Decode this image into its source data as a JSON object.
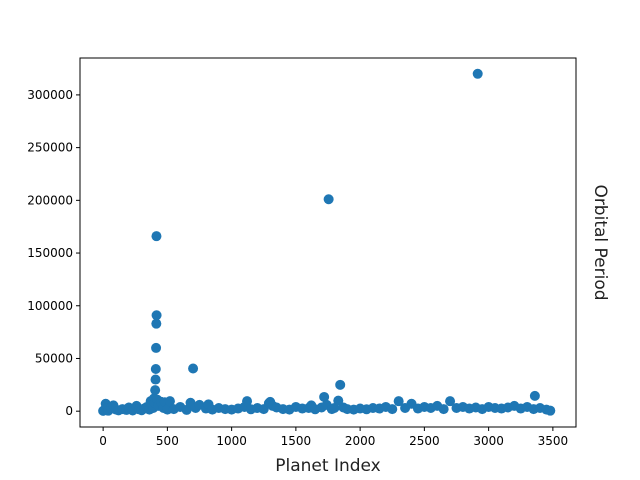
{
  "chart_data": {
    "type": "scatter",
    "title": "",
    "xlabel": "Planet Index",
    "ylabel": "Orbital Period",
    "xlim": [
      -180,
      3680
    ],
    "ylim": [
      -15000,
      335000
    ],
    "x_ticks": [
      0,
      500,
      1000,
      1500,
      2000,
      2500,
      3000,
      3500
    ],
    "y_ticks": [
      0,
      50000,
      100000,
      150000,
      200000,
      250000,
      300000
    ],
    "grid": false,
    "legend": "none",
    "marker_color": "#1f77b4",
    "series": [
      {
        "points": [
          [
            0,
            300
          ],
          [
            10,
            1200
          ],
          [
            20,
            7000
          ],
          [
            30,
            2500
          ],
          [
            40,
            500
          ],
          [
            60,
            3000
          ],
          [
            80,
            5500
          ],
          [
            100,
            1500
          ],
          [
            120,
            800
          ],
          [
            150,
            2000
          ],
          [
            180,
            1200
          ],
          [
            200,
            3500
          ],
          [
            230,
            700
          ],
          [
            260,
            5000
          ],
          [
            280,
            1800
          ],
          [
            300,
            900
          ],
          [
            320,
            2600
          ],
          [
            340,
            4000
          ],
          [
            360,
            1500
          ],
          [
            370,
            9500
          ],
          [
            380,
            6000
          ],
          [
            390,
            3000
          ],
          [
            395,
            12000
          ],
          [
            400,
            8000
          ],
          [
            405,
            20000
          ],
          [
            408,
            30000
          ],
          [
            410,
            40000
          ],
          [
            412,
            60000
          ],
          [
            414,
            83000
          ],
          [
            415,
            166000
          ],
          [
            416,
            91000
          ],
          [
            420,
            11000
          ],
          [
            430,
            5000
          ],
          [
            450,
            9000
          ],
          [
            470,
            3000
          ],
          [
            480,
            8500
          ],
          [
            500,
            1500
          ],
          [
            520,
            9500
          ],
          [
            550,
            2000
          ],
          [
            600,
            4000
          ],
          [
            650,
            1200
          ],
          [
            680,
            8000
          ],
          [
            700,
            40500
          ],
          [
            720,
            3000
          ],
          [
            750,
            6000
          ],
          [
            800,
            2500
          ],
          [
            820,
            6500
          ],
          [
            850,
            1500
          ],
          [
            900,
            3000
          ],
          [
            950,
            2000
          ],
          [
            1000,
            1500
          ],
          [
            1050,
            2500
          ],
          [
            1100,
            4000
          ],
          [
            1120,
            9500
          ],
          [
            1150,
            1800
          ],
          [
            1200,
            3000
          ],
          [
            1250,
            2000
          ],
          [
            1290,
            7500
          ],
          [
            1300,
            8800
          ],
          [
            1320,
            5000
          ],
          [
            1350,
            3500
          ],
          [
            1400,
            2000
          ],
          [
            1450,
            1500
          ],
          [
            1500,
            4000
          ],
          [
            1550,
            2500
          ],
          [
            1600,
            3000
          ],
          [
            1620,
            5500
          ],
          [
            1650,
            1800
          ],
          [
            1700,
            3500
          ],
          [
            1720,
            13500
          ],
          [
            1740,
            6000
          ],
          [
            1755,
            201000
          ],
          [
            1780,
            2000
          ],
          [
            1800,
            3000
          ],
          [
            1830,
            10000
          ],
          [
            1845,
            25000
          ],
          [
            1870,
            3500
          ],
          [
            1900,
            2000
          ],
          [
            1950,
            1500
          ],
          [
            2000,
            2500
          ],
          [
            2050,
            1800
          ],
          [
            2100,
            3000
          ],
          [
            2150,
            2500
          ],
          [
            2200,
            4000
          ],
          [
            2250,
            2000
          ],
          [
            2300,
            9500
          ],
          [
            2350,
            3000
          ],
          [
            2400,
            7000
          ],
          [
            2450,
            2500
          ],
          [
            2500,
            4000
          ],
          [
            2550,
            3000
          ],
          [
            2600,
            5000
          ],
          [
            2650,
            2000
          ],
          [
            2700,
            9500
          ],
          [
            2750,
            3000
          ],
          [
            2800,
            4000
          ],
          [
            2850,
            2500
          ],
          [
            2900,
            3500
          ],
          [
            2915,
            320000
          ],
          [
            2950,
            2000
          ],
          [
            3000,
            4000
          ],
          [
            3050,
            3000
          ],
          [
            3100,
            2500
          ],
          [
            3150,
            3500
          ],
          [
            3200,
            5000
          ],
          [
            3250,
            2500
          ],
          [
            3300,
            4000
          ],
          [
            3350,
            2000
          ],
          [
            3360,
            14500
          ],
          [
            3400,
            3000
          ],
          [
            3450,
            1500
          ],
          [
            3480,
            500
          ]
        ]
      }
    ]
  }
}
